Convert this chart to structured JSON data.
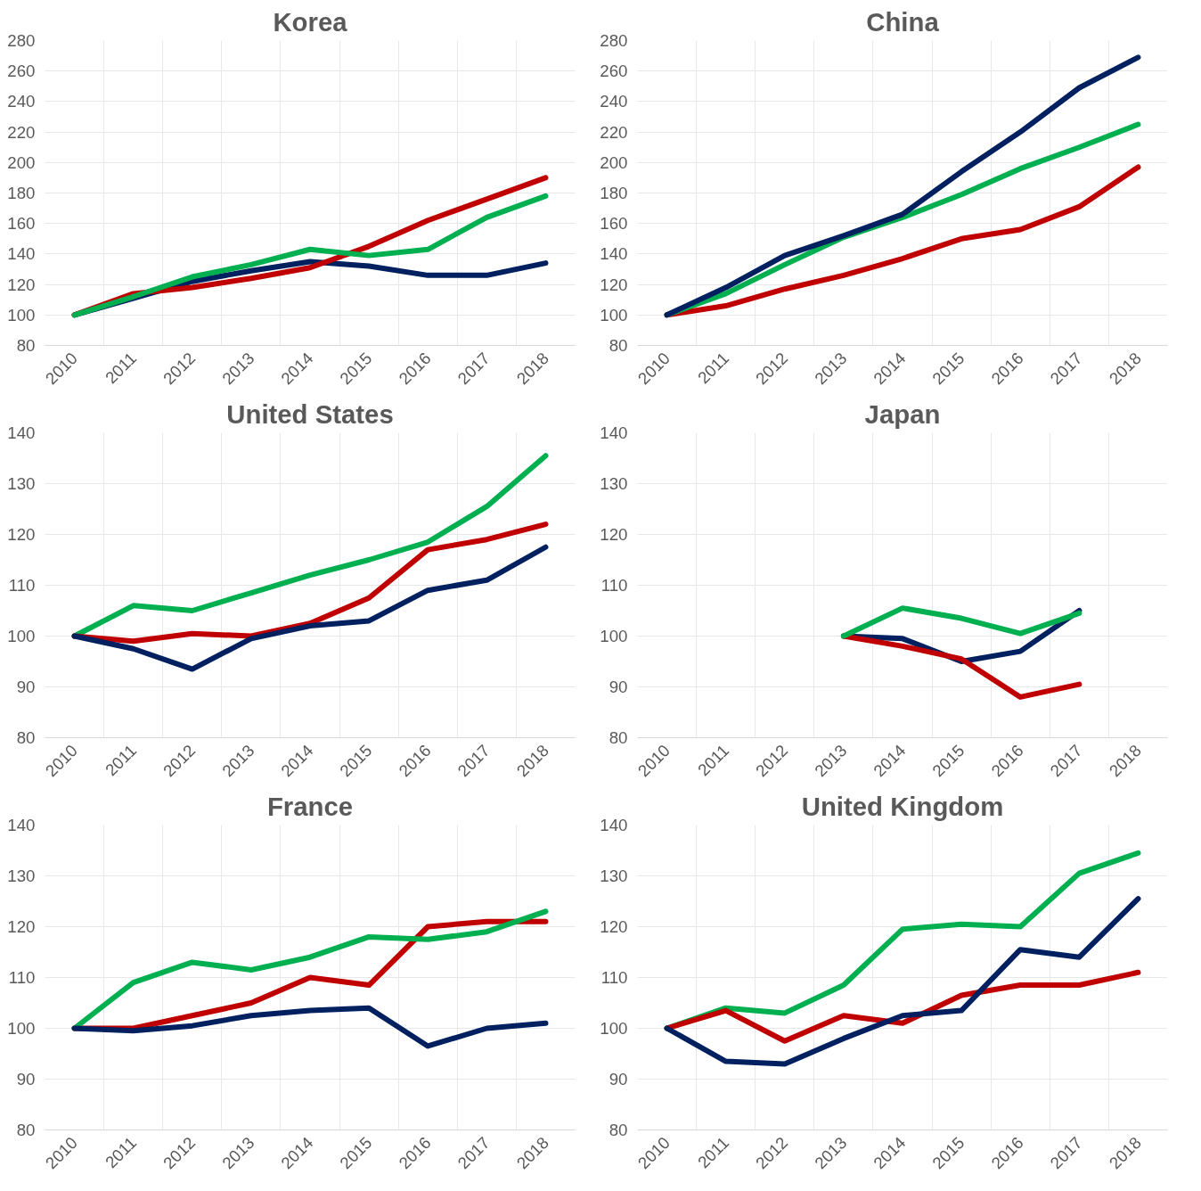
{
  "chart_data": [
    {
      "type": "line",
      "title": "Korea",
      "categories": [
        "2010",
        "2011",
        "2012",
        "2013",
        "2014",
        "2015",
        "2016",
        "2017",
        "2018"
      ],
      "ylim": [
        80,
        280
      ],
      "yticks": [
        80,
        100,
        120,
        140,
        160,
        180,
        200,
        220,
        240,
        260,
        280
      ],
      "grid": true,
      "line_style": "solid",
      "series": [
        {
          "color": "#002060",
          "values": [
            100,
            111,
            122,
            129,
            135,
            132,
            126,
            126,
            134
          ]
        },
        {
          "color": "#c00000",
          "values": [
            100,
            114,
            118,
            124,
            131,
            145,
            162,
            176,
            190
          ]
        },
        {
          "color": "#00b050",
          "values": [
            100,
            112,
            125,
            133,
            143,
            139,
            143,
            164,
            178
          ]
        }
      ]
    },
    {
      "type": "line",
      "title": "China",
      "categories": [
        "2010",
        "2011",
        "2012",
        "2013",
        "2014",
        "2015",
        "2016",
        "2017",
        "2018"
      ],
      "ylim": [
        80,
        280
      ],
      "yticks": [
        80,
        100,
        120,
        140,
        160,
        180,
        200,
        220,
        240,
        260,
        280
      ],
      "grid": true,
      "line_style": "solid",
      "series": [
        {
          "color": "#c00000",
          "values": [
            100,
            106,
            117,
            126,
            137,
            150,
            156,
            171,
            197
          ]
        },
        {
          "color": "#00b050",
          "values": [
            100,
            114,
            133,
            151,
            164,
            179,
            196,
            210,
            225
          ]
        },
        {
          "color": "#002060",
          "values": [
            100,
            118,
            139,
            152,
            166,
            194,
            220,
            249,
            269
          ]
        }
      ]
    },
    {
      "type": "line",
      "title": "United States",
      "categories": [
        "2010",
        "2011",
        "2012",
        "2013",
        "2014",
        "2015",
        "2016",
        "2017",
        "2018"
      ],
      "ylim": [
        80,
        140
      ],
      "yticks": [
        80,
        90,
        100,
        110,
        120,
        130,
        140
      ],
      "grid": true,
      "line_style": "solid",
      "series": [
        {
          "color": "#00b050",
          "values": [
            100,
            106,
            105,
            108.5,
            112,
            115,
            118.5,
            125.5,
            135.5
          ]
        },
        {
          "color": "#c00000",
          "values": [
            100,
            99,
            100.5,
            100,
            102.5,
            107.5,
            117,
            119,
            122
          ]
        },
        {
          "color": "#002060",
          "values": [
            100,
            97.5,
            93.5,
            99.5,
            102,
            103,
            109,
            111,
            117.5
          ]
        }
      ]
    },
    {
      "type": "line",
      "title": "Japan",
      "categories": [
        "2010",
        "2011",
        "2012",
        "2013",
        "2014",
        "2015",
        "2016",
        "2017",
        "2018"
      ],
      "ylim": [
        80,
        140
      ],
      "yticks": [
        80,
        90,
        100,
        110,
        120,
        130,
        140
      ],
      "grid": true,
      "line_style": "solid",
      "series": [
        {
          "color": "#002060",
          "values": [
            null,
            null,
            null,
            100,
            99.5,
            95,
            97,
            105,
            null
          ]
        },
        {
          "color": "#c00000",
          "values": [
            null,
            null,
            null,
            100,
            98,
            95.5,
            88,
            90.5,
            null
          ]
        },
        {
          "color": "#00b050",
          "values": [
            null,
            null,
            null,
            100,
            105.5,
            103.5,
            100.5,
            104.5,
            null
          ]
        }
      ]
    },
    {
      "type": "line",
      "title": "France",
      "categories": [
        "2010",
        "2011",
        "2012",
        "2013",
        "2014",
        "2015",
        "2016",
        "2017",
        "2018"
      ],
      "ylim": [
        80,
        140
      ],
      "yticks": [
        80,
        90,
        100,
        110,
        120,
        130,
        140
      ],
      "grid": true,
      "line_style": "solid",
      "series": [
        {
          "color": "#c00000",
          "values": [
            100,
            100,
            102.5,
            105,
            110,
            108.5,
            120,
            121,
            121
          ]
        },
        {
          "color": "#00b050",
          "values": [
            100,
            109,
            113,
            111.5,
            114,
            118,
            117.5,
            119,
            123
          ]
        },
        {
          "color": "#002060",
          "values": [
            100,
            99.5,
            100.5,
            102.5,
            103.5,
            104,
            96.5,
            100,
            101
          ]
        }
      ]
    },
    {
      "type": "line",
      "title": "United Kingdom",
      "categories": [
        "2010",
        "2011",
        "2012",
        "2013",
        "2014",
        "2015",
        "2016",
        "2017",
        "2018"
      ],
      "ylim": [
        80,
        140
      ],
      "yticks": [
        80,
        90,
        100,
        110,
        120,
        130,
        140
      ],
      "grid": true,
      "line_style": "solid",
      "series": [
        {
          "color": "#00b050",
          "values": [
            100,
            104,
            103,
            108.5,
            119.5,
            120.5,
            120,
            130.5,
            134.5
          ]
        },
        {
          "color": "#c00000",
          "values": [
            100,
            103.5,
            97.5,
            102.5,
            101,
            106.5,
            108.5,
            108.5,
            111
          ]
        },
        {
          "color": "#002060",
          "values": [
            100,
            93.5,
            93,
            98,
            102.5,
            103.5,
            115.5,
            114,
            125.5
          ]
        }
      ]
    }
  ]
}
